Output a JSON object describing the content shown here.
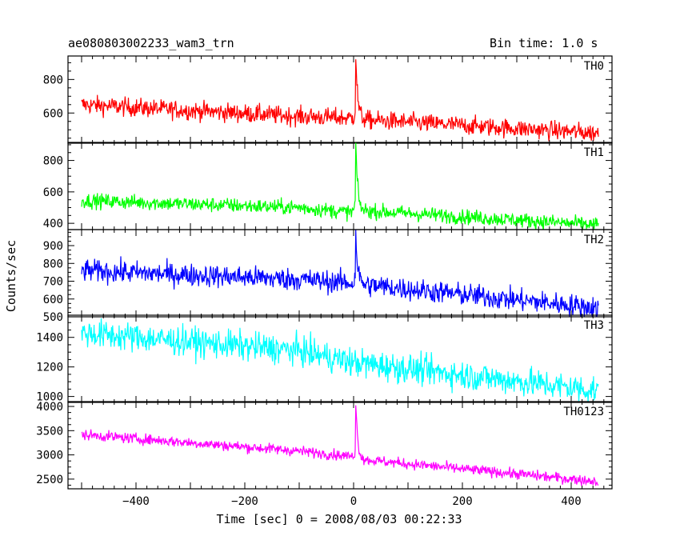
{
  "header": {
    "title": "ae080803002233_wam3_trn",
    "bin_time": "Bin time: 1.0 s"
  },
  "chart_data": {
    "type": "line",
    "xlabel": "Time [sec] 0 = 2008/08/03 00:22:33",
    "ylabel": "Counts/sec",
    "xlim": [
      -525,
      475
    ],
    "x_ticks": [
      -400,
      -200,
      0,
      200,
      400
    ],
    "x_range": [
      -500,
      450
    ],
    "panels": [
      {
        "name": "TH0",
        "color": "#ff0000",
        "ylim": [
          420,
          940
        ],
        "y_ticks": [
          600,
          800
        ],
        "trend": [
          [
            -500,
            650
          ],
          [
            -100,
            580
          ],
          [
            -5,
            570
          ],
          [
            20,
            560
          ],
          [
            450,
            480
          ]
        ],
        "noise": 28,
        "burst": {
          "peak_x": 4,
          "peak_y": 940,
          "base": 560
        }
      },
      {
        "name": "TH1",
        "color": "#00ff00",
        "ylim": [
          360,
          915
        ],
        "y_ticks": [
          400,
          600,
          800
        ],
        "trend": [
          [
            -500,
            545
          ],
          [
            -100,
            500
          ],
          [
            -5,
            470
          ],
          [
            20,
            480
          ],
          [
            450,
            390
          ]
        ],
        "noise": 24,
        "burst": {
          "peak_x": 4,
          "peak_y": 915,
          "base": 470
        }
      },
      {
        "name": "TH2",
        "color": "#0000ff",
        "ylim": [
          500,
          990
        ],
        "y_ticks": [
          500,
          600,
          700,
          800,
          900
        ],
        "trend": [
          [
            -500,
            760
          ],
          [
            -100,
            710
          ],
          [
            -5,
            690
          ],
          [
            20,
            680
          ],
          [
            450,
            550
          ]
        ],
        "noise": 32,
        "burst": {
          "peak_x": 4,
          "peak_y": 985,
          "base": 690
        }
      },
      {
        "name": "TH3",
        "color": "#00ffff",
        "ylim": [
          960,
          1550
        ],
        "y_ticks": [
          1000,
          1200,
          1400
        ],
        "trend": [
          [
            -500,
            1430
          ],
          [
            -100,
            1310
          ],
          [
            0,
            1230
          ],
          [
            450,
            1040
          ]
        ],
        "noise": 50,
        "burst": null
      },
      {
        "name": "TH0123",
        "color": "#ff00ff",
        "ylim": [
          2300,
          4100
        ],
        "y_ticks": [
          2500,
          3000,
          3500,
          4000
        ],
        "trend": [
          [
            -500,
            3420
          ],
          [
            -100,
            3080
          ],
          [
            -5,
            2970
          ],
          [
            20,
            2900
          ],
          [
            450,
            2450
          ]
        ],
        "noise": 55,
        "burst": {
          "peak_x": 4,
          "peak_y": 4100,
          "base": 2960
        }
      }
    ]
  }
}
